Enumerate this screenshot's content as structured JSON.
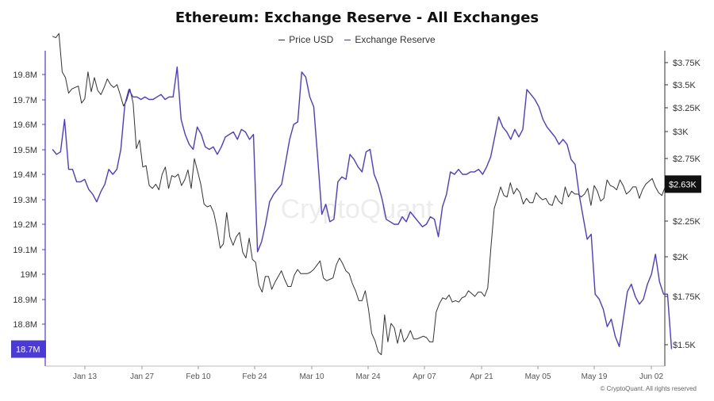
{
  "chart_data": {
    "type": "line",
    "title": "Ethereum: Exchange Reserve - All Exchanges",
    "x_ticks": [
      "Jan 13",
      "Jan 27",
      "Feb 10",
      "Feb 24",
      "Mar 10",
      "Mar 24",
      "Apr 07",
      "Apr 21",
      "May 05",
      "May 19",
      "Jun 02"
    ],
    "left_axis": {
      "ticks": [
        "19.8M",
        "19.7M",
        "19.6M",
        "19.5M",
        "19.4M",
        "19.3M",
        "19.2M",
        "19.1M",
        "19M",
        "18.9M",
        "18.8M"
      ],
      "ylim": [
        18.68,
        19.88
      ],
      "current_label": "18.7M"
    },
    "right_axis": {
      "ticks": [
        "$3.75K",
        "$3.5K",
        "$3.25K",
        "$3K",
        "$2.75K",
        "$2.5K",
        "$2.25K",
        "$2K",
        "$1.75K",
        "$1.5K"
      ],
      "ylim": [
        1.42,
        3.82
      ],
      "current_label": "$2.63K"
    },
    "x_range": [
      -8,
      145
    ],
    "series": [
      {
        "name": "Price USD",
        "color": "#333333",
        "axis": "right",
        "values": [
          3.67,
          3.66,
          3.69,
          3.42,
          3.38,
          3.27,
          3.3,
          3.31,
          3.32,
          3.2,
          3.23,
          3.42,
          3.28,
          3.38,
          3.29,
          3.26,
          3.31,
          3.37,
          3.33,
          3.31,
          3.33,
          3.26,
          3.18,
          3.22,
          3.3,
          3.2,
          2.88,
          2.94,
          2.75,
          2.76,
          2.62,
          2.6,
          2.63,
          2.59,
          2.7,
          2.75,
          2.6,
          2.69,
          2.68,
          2.7,
          2.62,
          2.66,
          2.73,
          2.6,
          2.81,
          2.72,
          2.63,
          2.49,
          2.47,
          2.48,
          2.43,
          2.32,
          2.18,
          2.21,
          2.43,
          2.26,
          2.2,
          2.26,
          2.29,
          2.15,
          2.11,
          2.25,
          2.1,
          2.08,
          1.92,
          1.87,
          1.98,
          1.98,
          1.89,
          1.94,
          1.98,
          2.02,
          1.96,
          1.91,
          1.91,
          1.99,
          2.03,
          2.0,
          2.0,
          2.0,
          2.01,
          2.03,
          2.06,
          2.09,
          1.97,
          1.95,
          1.96,
          1.97,
          2.06,
          2.11,
          2.07,
          2.02,
          2.0,
          1.93,
          1.88,
          1.81,
          1.81,
          1.88,
          1.75,
          1.58,
          1.53,
          1.45,
          1.43,
          1.71,
          1.52,
          1.65,
          1.62,
          1.51,
          1.61,
          1.52,
          1.55,
          1.6,
          1.54,
          1.54,
          1.55,
          1.56,
          1.55,
          1.52,
          1.52,
          1.73,
          1.79,
          1.83,
          1.82,
          1.85,
          1.8,
          1.81,
          1.8,
          1.83,
          1.84,
          1.88,
          1.86,
          1.84,
          1.87,
          1.87,
          1.84,
          1.9,
          2.19,
          2.46,
          2.53,
          2.61,
          2.55,
          2.54,
          2.64,
          2.56,
          2.6,
          2.57,
          2.49,
          2.53,
          2.5,
          2.5,
          2.57,
          2.54,
          2.52,
          2.53,
          2.49,
          2.48,
          2.55,
          2.51,
          2.49,
          2.61,
          2.54,
          2.58,
          2.56,
          2.56,
          2.54,
          2.56,
          2.6,
          2.48,
          2.62,
          2.58,
          2.51,
          2.53,
          2.66,
          2.62,
          2.61,
          2.59,
          2.66,
          2.62,
          2.56,
          2.58,
          2.61,
          2.61,
          2.53,
          2.59,
          2.63,
          2.65,
          2.67,
          2.61,
          2.57,
          2.55,
          2.61,
          2.62,
          2.63
        ]
      },
      {
        "name": "Exchange Reserve",
        "color": "#4b3ad8",
        "axis": "left",
        "values": [
          19.5,
          19.48,
          19.49,
          19.62,
          19.42,
          19.42,
          19.37,
          19.37,
          19.38,
          19.34,
          19.32,
          19.29,
          19.33,
          19.36,
          19.42,
          19.4,
          19.42,
          19.5,
          19.68,
          19.74,
          19.71,
          19.71,
          19.7,
          19.71,
          19.7,
          19.7,
          19.71,
          19.72,
          19.7,
          19.71,
          19.71,
          19.83,
          19.62,
          19.56,
          19.52,
          19.5,
          19.59,
          19.56,
          19.51,
          19.5,
          19.51,
          19.48,
          19.51,
          19.55,
          19.56,
          19.57,
          19.54,
          19.58,
          19.57,
          19.54,
          19.56,
          19.09,
          19.13,
          19.2,
          19.29,
          19.32,
          19.34,
          19.36,
          19.45,
          19.54,
          19.6,
          19.61,
          19.81,
          19.79,
          19.71,
          19.67,
          19.46,
          19.24,
          19.28,
          19.21,
          19.22,
          19.37,
          19.39,
          19.38,
          19.48,
          19.46,
          19.43,
          19.41,
          19.49,
          19.5,
          19.4,
          19.36,
          19.3,
          19.22,
          19.21,
          19.2,
          19.2,
          19.23,
          19.21,
          19.25,
          19.23,
          19.21,
          19.19,
          19.2,
          19.23,
          19.22,
          19.15,
          19.27,
          19.32,
          19.41,
          19.4,
          19.42,
          19.4,
          19.4,
          19.41,
          19.41,
          19.42,
          19.4,
          19.43,
          19.47,
          19.55,
          19.63,
          19.59,
          19.57,
          19.54,
          19.58,
          19.55,
          19.58,
          19.74,
          19.72,
          19.7,
          19.67,
          19.62,
          19.59,
          19.57,
          19.55,
          19.52,
          19.54,
          19.52,
          19.46,
          19.44,
          19.32,
          19.23,
          19.14,
          19.16,
          18.92,
          18.9,
          18.86,
          18.79,
          18.82,
          18.75,
          18.71,
          18.82,
          18.93,
          18.96,
          18.91,
          18.88,
          18.9,
          18.96,
          19.0,
          19.08,
          18.97,
          18.92,
          18.92,
          18.7
        ]
      }
    ],
    "watermark": "CryptoQuant"
  },
  "footer": {
    "copyright": "© CryptoQuant. All rights reserved"
  }
}
